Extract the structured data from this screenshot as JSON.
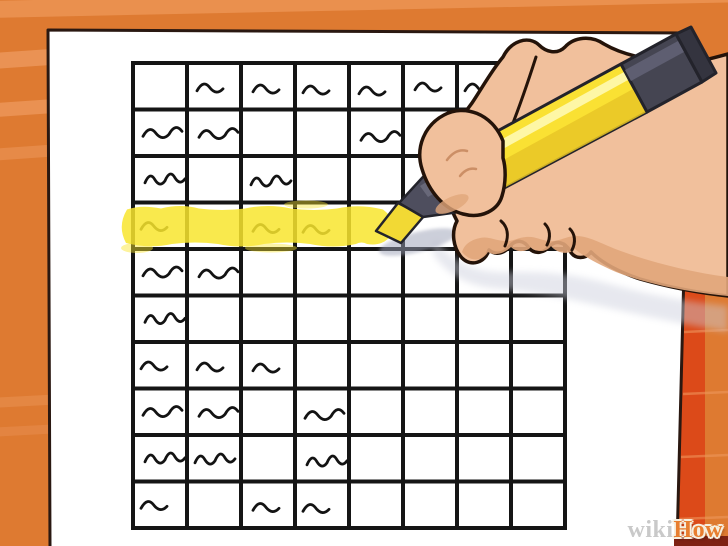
{
  "illustration": {
    "alt": "Cartoon right hand gripping a yellow highlighter, highlighting the fourth row of a hand-drawn table on a white sheet of paper over an orange background"
  },
  "watermark": {
    "wiki": "wiki",
    "how": "How"
  },
  "colors": {
    "background": "#DE7A31",
    "background_stripe": "#EC975B",
    "accent_band": "#DC4A19",
    "footer_strip": "#7E2113",
    "paper": "#FFFFFF",
    "paper_outline": "#2A1811",
    "grid_line": "#151515",
    "mark_ink": "#131313",
    "highlight": "#F9E62E",
    "marker_body": "#FAE133",
    "marker_body_shine": "#FEF7A6",
    "marker_body_shade": "#E8C627",
    "marker_cap": "#454552",
    "marker_cap_facet": "#5E5E71",
    "marker_cap_end": "#34343F",
    "marker_cone": "#4E4E5E",
    "marker_tip": "#F2D934",
    "skin": "#F1C09C",
    "skin_shade": "#E1A67B",
    "outline": "#241309"
  },
  "grid": {
    "rows": 10,
    "columns": 8,
    "marked_cells": [
      [
        0,
        1
      ],
      [
        0,
        2
      ],
      [
        0,
        3
      ],
      [
        0,
        4
      ],
      [
        0,
        5
      ],
      [
        0,
        6
      ],
      [
        1,
        0
      ],
      [
        1,
        1
      ],
      [
        1,
        4
      ],
      [
        2,
        0
      ],
      [
        2,
        2
      ],
      [
        3,
        0
      ],
      [
        3,
        2
      ],
      [
        3,
        3
      ],
      [
        4,
        0
      ],
      [
        4,
        1
      ],
      [
        5,
        0
      ],
      [
        6,
        0
      ],
      [
        6,
        1
      ],
      [
        6,
        2
      ],
      [
        7,
        0
      ],
      [
        7,
        1
      ],
      [
        7,
        3
      ],
      [
        8,
        0
      ],
      [
        8,
        1
      ],
      [
        8,
        3
      ],
      [
        9,
        0
      ],
      [
        9,
        2
      ],
      [
        9,
        3
      ]
    ],
    "highlighted_row": 3,
    "highlight_note": "yellow highlighter streak covers columns 1-4 and part of column 5"
  }
}
